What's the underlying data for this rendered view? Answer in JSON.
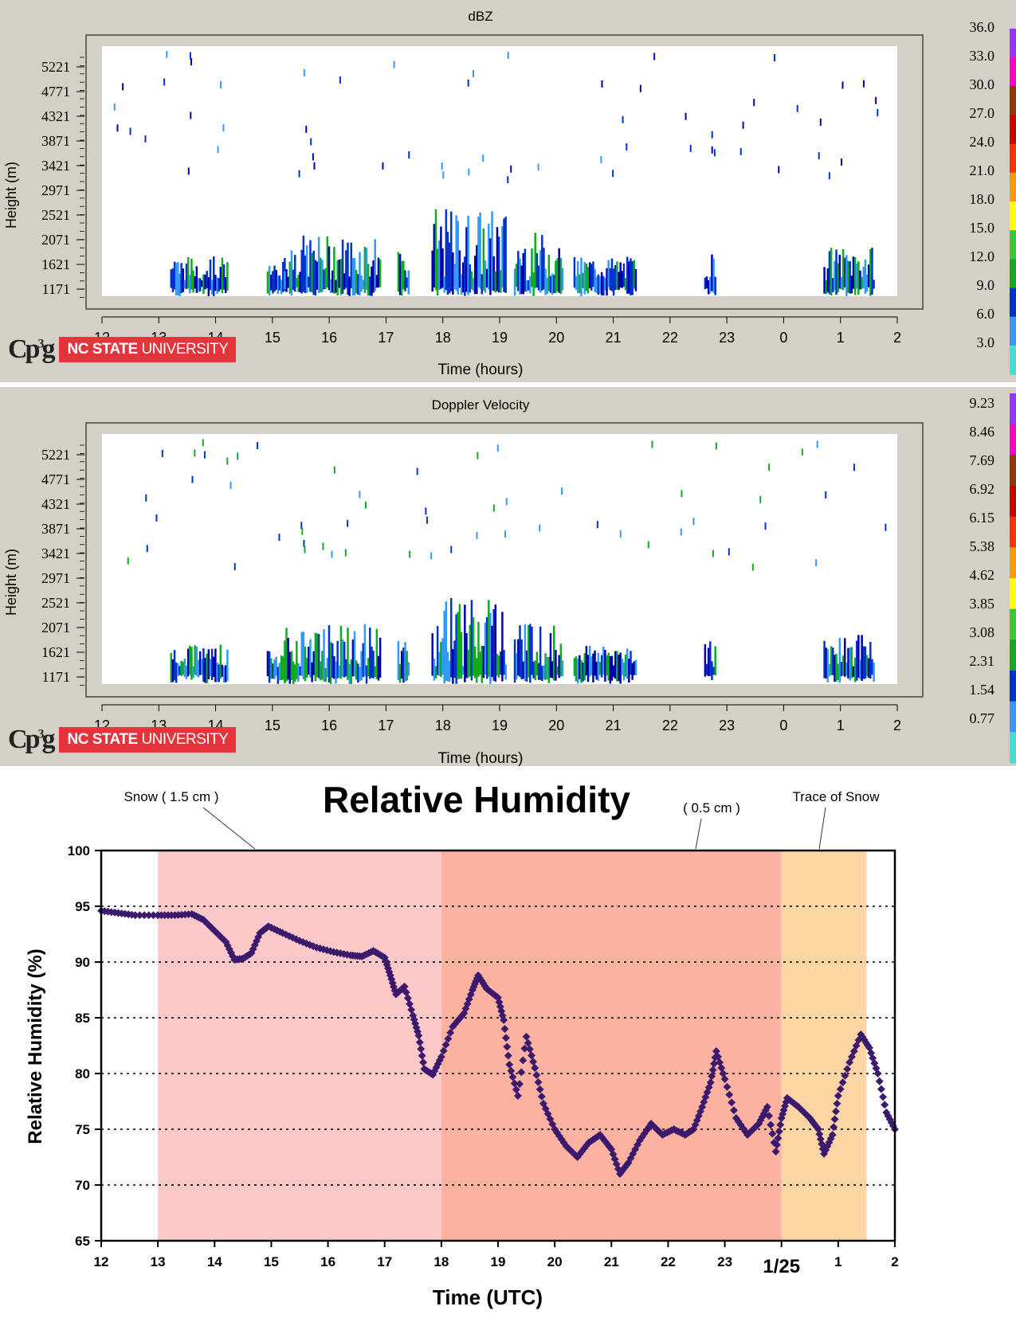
{
  "panels": [
    {
      "title": "dBZ",
      "ylabel": "Height (m)",
      "xlabel": "Time (hours)",
      "yticks": [
        "5221",
        "4771",
        "4321",
        "3871",
        "3421",
        "2971",
        "2521",
        "2071",
        "1621",
        "1171"
      ],
      "xticks": [
        "12",
        "13",
        "14",
        "15",
        "16",
        "17",
        "18",
        "19",
        "20",
        "21",
        "22",
        "23",
        "0",
        "1",
        "2"
      ],
      "colorbar_labels": [
        "36.0",
        "33.0",
        "30.0",
        "27.0",
        "24.0",
        "21.0",
        "18.0",
        "15.0",
        "12.0",
        "9.0",
        "6.0",
        "3.0"
      ],
      "logo_text": "Cp",
      "university_bold": "NC STATE",
      "university_light": "UNIVERSITY"
    },
    {
      "title": "Doppler Velocity",
      "ylabel": "Height (m)",
      "xlabel": "Time (hours)",
      "yticks": [
        "5221",
        "4771",
        "4321",
        "3871",
        "3421",
        "2971",
        "2521",
        "2071",
        "1621",
        "1171"
      ],
      "xticks": [
        "12",
        "13",
        "14",
        "15",
        "16",
        "17",
        "18",
        "19",
        "20",
        "21",
        "22",
        "23",
        "0",
        "1",
        "2"
      ],
      "colorbar_labels": [
        "9.23",
        "8.46",
        "7.69",
        "6.92",
        "6.15",
        "5.38",
        "4.62",
        "3.85",
        "3.08",
        "2.31",
        "1.54",
        "0.77"
      ],
      "logo_text": "Cp",
      "university_bold": "NC STATE",
      "university_light": "UNIVERSITY"
    }
  ],
  "colorbar_colors": [
    "#40e0d0",
    "#3399ff",
    "#0033cc",
    "#11aa22",
    "#33cc33",
    "#ffff00",
    "#ff9900",
    "#ff3300",
    "#cc0000",
    "#993300",
    "#ff00cc",
    "#9933ff"
  ],
  "chart_data": {
    "type": "scatter",
    "title": "Relative Humidity",
    "xlabel": "Time (UTC)",
    "ylabel": "Relative Humidity (%)",
    "xlim": [
      12,
      26
    ],
    "ylim": [
      65,
      100
    ],
    "xticks": [
      "12",
      "13",
      "14",
      "15",
      "16",
      "17",
      "18",
      "19",
      "20",
      "21",
      "22",
      "23",
      "1/25",
      "1",
      "2"
    ],
    "yticks": [
      65,
      70,
      75,
      80,
      85,
      90,
      95,
      100
    ],
    "grid": "horizontal dotted",
    "bands": [
      {
        "x0": 13,
        "x1": 18,
        "color": "#fdc8c8",
        "label": "Snow  ( 1.5 cm )"
      },
      {
        "x0": 18,
        "x1": 24,
        "color": "#fbb2a0",
        "label": "( 0.5 cm )"
      },
      {
        "x0": 24,
        "x1": 25.5,
        "color": "#fdd4a4",
        "label": "Trace of Snow"
      }
    ],
    "series": [
      {
        "color": "#3b1a6e",
        "points": [
          [
            12.0,
            94.6
          ],
          [
            12.3,
            94.4
          ],
          [
            12.6,
            94.2
          ],
          [
            13.0,
            94.2
          ],
          [
            13.3,
            94.2
          ],
          [
            13.6,
            94.3
          ],
          [
            13.8,
            93.8
          ],
          [
            14.0,
            92.8
          ],
          [
            14.2,
            91.8
          ],
          [
            14.35,
            90.2
          ],
          [
            14.5,
            90.3
          ],
          [
            14.65,
            90.8
          ],
          [
            14.8,
            92.6
          ],
          [
            14.95,
            93.2
          ],
          [
            15.2,
            92.6
          ],
          [
            15.5,
            91.9
          ],
          [
            15.8,
            91.3
          ],
          [
            16.1,
            90.9
          ],
          [
            16.4,
            90.6
          ],
          [
            16.6,
            90.5
          ],
          [
            16.8,
            91.0
          ],
          [
            17.0,
            90.4
          ],
          [
            17.1,
            88.8
          ],
          [
            17.2,
            87.1
          ],
          [
            17.35,
            87.8
          ],
          [
            17.5,
            85.2
          ],
          [
            17.6,
            83.4
          ],
          [
            17.7,
            80.4
          ],
          [
            17.85,
            79.9
          ],
          [
            18.0,
            81.5
          ],
          [
            18.2,
            84.2
          ],
          [
            18.4,
            85.4
          ],
          [
            18.55,
            87.5
          ],
          [
            18.65,
            88.8
          ],
          [
            18.8,
            87.6
          ],
          [
            19.0,
            86.8
          ],
          [
            19.1,
            84.8
          ],
          [
            19.2,
            80.8
          ],
          [
            19.35,
            78.0
          ],
          [
            19.5,
            83.3
          ],
          [
            19.65,
            80.5
          ],
          [
            19.8,
            77.3
          ],
          [
            20.0,
            75.0
          ],
          [
            20.2,
            73.5
          ],
          [
            20.4,
            72.5
          ],
          [
            20.6,
            73.8
          ],
          [
            20.8,
            74.5
          ],
          [
            21.0,
            73.2
          ],
          [
            21.15,
            71.0
          ],
          [
            21.3,
            72.0
          ],
          [
            21.5,
            74.0
          ],
          [
            21.7,
            75.5
          ],
          [
            21.9,
            74.5
          ],
          [
            22.1,
            75.0
          ],
          [
            22.3,
            74.5
          ],
          [
            22.45,
            75.0
          ],
          [
            22.6,
            77.0
          ],
          [
            22.75,
            79.2
          ],
          [
            22.85,
            82.0
          ],
          [
            23.0,
            79.5
          ],
          [
            23.2,
            76.0
          ],
          [
            23.4,
            74.5
          ],
          [
            23.6,
            75.5
          ],
          [
            23.75,
            77.0
          ],
          [
            23.9,
            73.0
          ],
          [
            24.0,
            76.0
          ],
          [
            24.1,
            77.8
          ],
          [
            24.3,
            77.0
          ],
          [
            24.5,
            76.0
          ],
          [
            24.65,
            75.0
          ],
          [
            24.75,
            72.8
          ],
          [
            24.9,
            74.5
          ],
          [
            25.0,
            78.0
          ],
          [
            25.2,
            81.0
          ],
          [
            25.4,
            83.5
          ],
          [
            25.55,
            82.3
          ],
          [
            25.7,
            80.0
          ],
          [
            25.85,
            76.5
          ],
          [
            26.0,
            75.0
          ]
        ]
      }
    ]
  }
}
